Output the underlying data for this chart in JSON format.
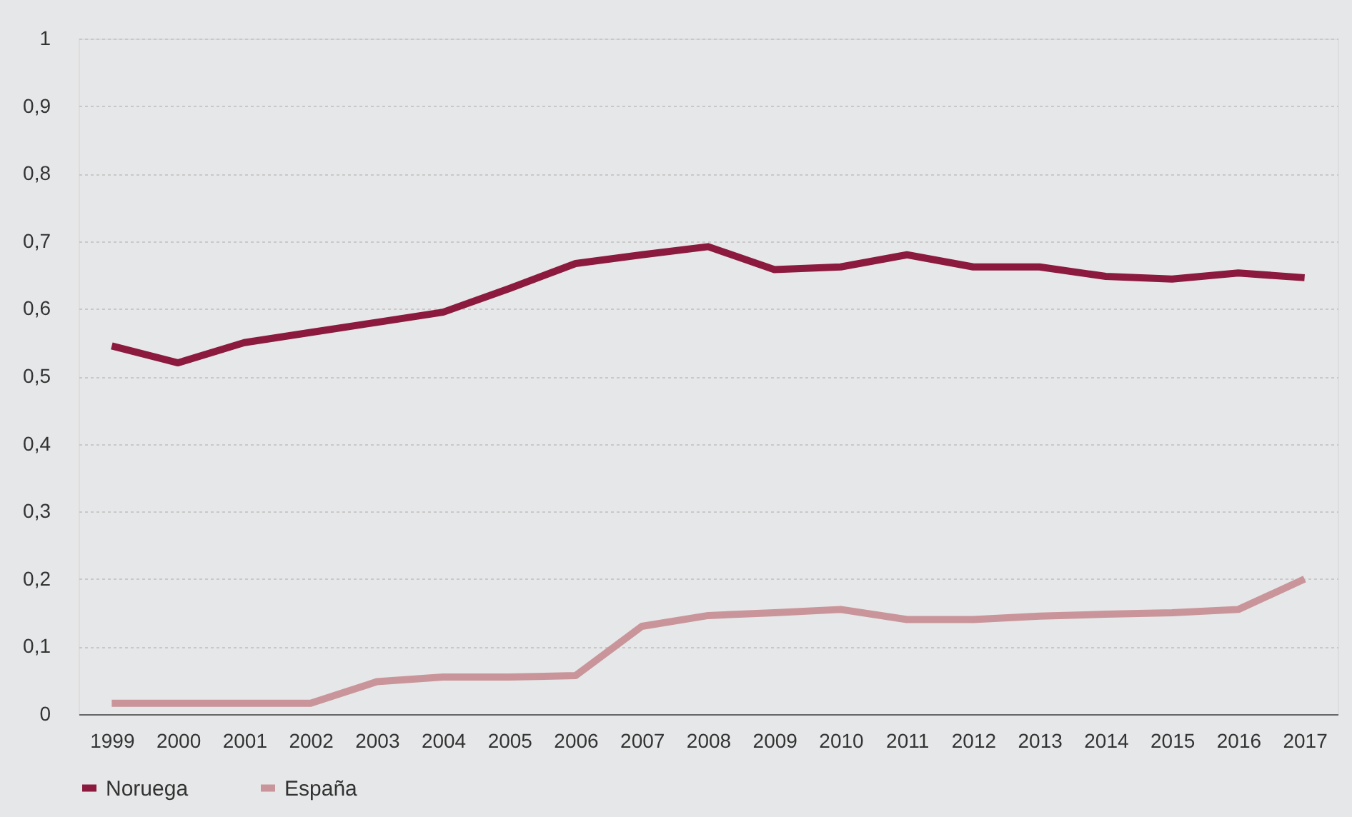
{
  "chart_data": {
    "type": "line",
    "categories": [
      "1999",
      "2000",
      "2001",
      "2002",
      "2003",
      "2004",
      "2005",
      "2006",
      "2007",
      "2008",
      "2009",
      "2010",
      "2011",
      "2012",
      "2013",
      "2014",
      "2015",
      "2016",
      "2017"
    ],
    "series": [
      {
        "name": "Noruega",
        "color": "#8b1a3e",
        "values": [
          0.545,
          0.52,
          0.55,
          0.565,
          0.58,
          0.595,
          0.63,
          0.667,
          0.68,
          0.692,
          0.658,
          0.662,
          0.68,
          0.662,
          0.662,
          0.648,
          0.644,
          0.653,
          0.646
        ]
      },
      {
        "name": "España",
        "color": "#c9959a",
        "values": [
          0.016,
          0.016,
          0.016,
          0.016,
          0.048,
          0.055,
          0.055,
          0.057,
          0.13,
          0.146,
          0.15,
          0.155,
          0.14,
          0.14,
          0.145,
          0.148,
          0.15,
          0.155,
          0.2
        ]
      }
    ],
    "ylim": [
      0,
      1
    ],
    "yticks": [
      0,
      {
        "value": 0.1,
        "label": "0,1"
      },
      {
        "value": 0.2,
        "label": "0,2"
      },
      {
        "value": 0.3,
        "label": "0,3"
      },
      {
        "value": 0.4,
        "label": "0,4"
      },
      {
        "value": 0.5,
        "label": "0,5"
      },
      {
        "value": 0.6,
        "label": "0,6"
      },
      {
        "value": 0.7,
        "label": "0,7"
      },
      {
        "value": 0.8,
        "label": "0,8"
      },
      {
        "value": 0.9,
        "label": "0,9"
      },
      1
    ],
    "grid": "y",
    "legend": "bottom",
    "marker": "none",
    "line_style": "solid"
  }
}
